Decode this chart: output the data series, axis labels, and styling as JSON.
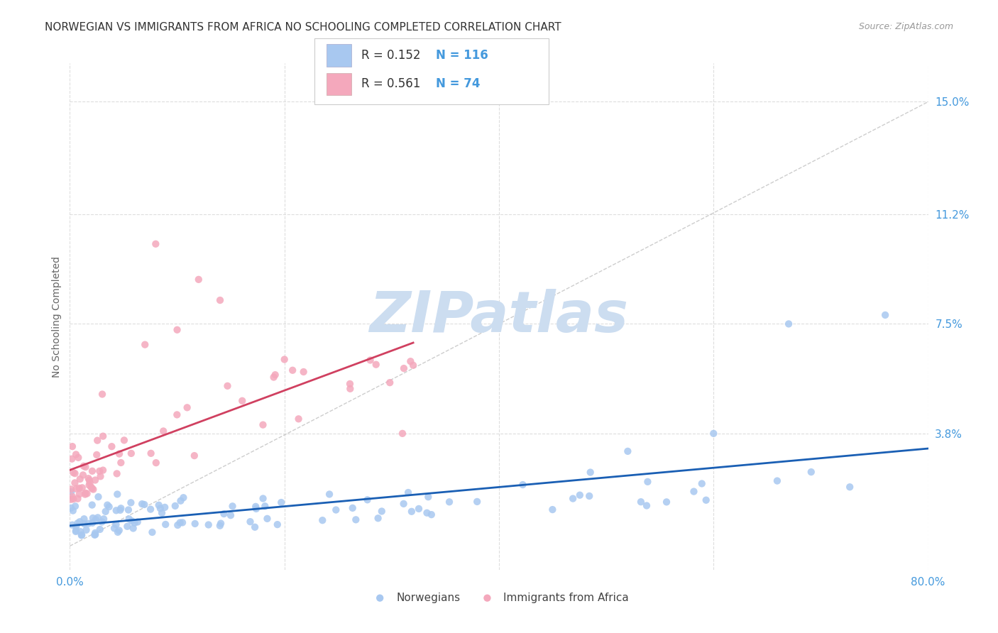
{
  "title": "NORWEGIAN VS IMMIGRANTS FROM AFRICA NO SCHOOLING COMPLETED CORRELATION CHART",
  "source": "Source: ZipAtlas.com",
  "ylabel": "No Schooling Completed",
  "ytick_labels": [
    "3.8%",
    "7.5%",
    "11.2%",
    "15.0%"
  ],
  "ytick_values": [
    0.038,
    0.075,
    0.112,
    0.15
  ],
  "xlim": [
    0.0,
    0.8
  ],
  "ylim": [
    -0.008,
    0.163
  ],
  "legend_r1": "R = 0.152",
  "legend_n1": "N = 116",
  "legend_r2": "R = 0.561",
  "legend_n2": "N = 74",
  "color_norwegian": "#a8c8f0",
  "color_africa": "#f4a8bc",
  "trendline_norwegian_color": "#1a5fb4",
  "trendline_africa_color": "#d04060",
  "trendline_diagonal_color": "#c8c8c8",
  "background_color": "#ffffff",
  "title_color": "#333333",
  "title_fontsize": 11,
  "axis_label_color": "#4499dd",
  "watermark_color": "#ccddf0",
  "scatter_size": 55,
  "grid_color": "#dddddd",
  "watermark_text": "ZIPatlas"
}
